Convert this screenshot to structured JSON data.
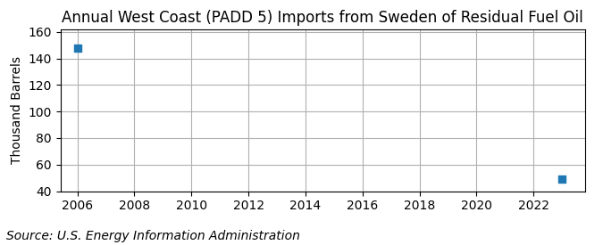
{
  "chart_data": {
    "type": "scatter",
    "title": "Annual West Coast (PADD 5) Imports from Sweden of Residual Fuel Oil",
    "ylabel": "Thousand Barrels",
    "annotation": "Source: U.S. Energy Information Administration",
    "x": [
      2006,
      2023
    ],
    "values": [
      148,
      49
    ],
    "marker": "square",
    "xlim": [
      2005.4,
      2023.8
    ],
    "ylim": [
      40,
      162
    ],
    "xticks": [
      2006,
      2008,
      2010,
      2012,
      2014,
      2016,
      2018,
      2020,
      2022
    ],
    "yticks": [
      40,
      60,
      80,
      100,
      120,
      140,
      160
    ],
    "grid": true
  }
}
